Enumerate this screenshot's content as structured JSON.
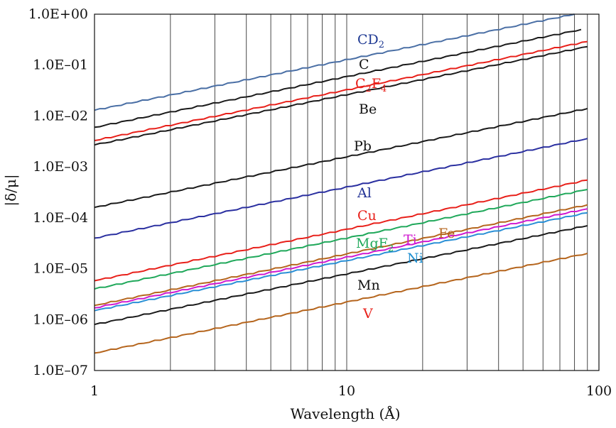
{
  "chart_data": {
    "type": "line",
    "xlabel": "Wavelength (Å)",
    "ylabel": "|δ/μ|",
    "xscale": "log",
    "yscale": "log",
    "xlim": [
      1,
      100
    ],
    "ylim": [
      1e-07,
      1
    ],
    "x_ticks": [
      1,
      10,
      100
    ],
    "x_tick_labels": [
      "1",
      "10",
      "100"
    ],
    "y_ticks": [
      1,
      0.1,
      0.01,
      0.001,
      0.0001,
      1e-05,
      1e-06,
      1e-07
    ],
    "y_tick_labels": [
      "1.0E+00",
      "1.0E–01",
      "1.0E–02",
      "1.0E–03",
      "1.0E–04",
      "1.0E–05",
      "1.0E–06",
      "1.0E–07"
    ],
    "grid": "vertical",
    "legend": "inline labels",
    "series": [
      {
        "label": "CD",
        "label_sub": "2",
        "label_sub2": "",
        "color": "#1f3a93",
        "line_color": "#4a6fa5",
        "x": [
          1,
          80
        ],
        "y": [
          0.013,
          1.0
        ]
      },
      {
        "label": "C",
        "label_sub": "",
        "label_sub2": "",
        "color": "#111111",
        "line_color": "#1a1a1a",
        "x": [
          1,
          85
        ],
        "y": [
          0.006,
          0.5
        ]
      },
      {
        "label": "C",
        "label_sub": "2",
        "label_mid": "F",
        "label_sub2": "4",
        "color": "#e8201a",
        "line_color": "#e8201a",
        "x": [
          1,
          90
        ],
        "y": [
          0.0033,
          0.29
        ]
      },
      {
        "label": "Be",
        "label_sub": "",
        "label_sub2": "",
        "color": "#111111",
        "line_color": "#1a1a1a",
        "x": [
          1,
          90
        ],
        "y": [
          0.0027,
          0.23
        ]
      },
      {
        "label": "Pb",
        "label_sub": "",
        "label_sub2": "",
        "color": "#111111",
        "line_color": "#1a1a1a",
        "x": [
          1,
          90
        ],
        "y": [
          0.00016,
          0.014
        ]
      },
      {
        "label": "Al",
        "label_sub": "",
        "label_sub2": "",
        "color": "#1f2f93",
        "line_color": "#2a2fa0",
        "x": [
          1,
          90
        ],
        "y": [
          4e-05,
          0.0036
        ]
      },
      {
        "label": "Cu",
        "label_sub": "",
        "label_sub2": "",
        "color": "#e8201a",
        "line_color": "#e8201a",
        "x": [
          1,
          90
        ],
        "y": [
          5.8e-06,
          0.00055
        ]
      },
      {
        "label": "MgF",
        "label_sub": "2",
        "label_sub2": "",
        "color": "#1fa85a",
        "line_color": "#1fa85a",
        "x": [
          1,
          90
        ],
        "y": [
          4e-06,
          0.00036
        ]
      },
      {
        "label": "Fe",
        "label_sub": "",
        "label_sub2": "",
        "color": "#b5651d",
        "line_color": "#b5651d",
        "x": [
          1,
          90
        ],
        "y": [
          1.9e-06,
          0.00018
        ]
      },
      {
        "label": "Ti",
        "label_sub": "",
        "label_sub2": "",
        "color": "#d019d0",
        "line_color": "#d019d0",
        "x": [
          1,
          90
        ],
        "y": [
          1.7e-06,
          0.00015
        ]
      },
      {
        "label": "Ni",
        "label_sub": "",
        "label_sub2": "",
        "color": "#1f8fd0",
        "line_color": "#2a8fd6",
        "x": [
          1,
          90
        ],
        "y": [
          1.5e-06,
          0.000125
        ]
      },
      {
        "label": "Mn",
        "label_sub": "",
        "label_sub2": "",
        "color": "#111111",
        "line_color": "#1a1a1a",
        "x": [
          1,
          90
        ],
        "y": [
          8e-07,
          7e-05
        ]
      },
      {
        "label": "V",
        "label_sub": "",
        "label_sub2": "",
        "color": "#e8201a",
        "line_color": "#b5651d",
        "x": [
          1,
          90
        ],
        "y": [
          2.2e-07,
          2e-05
        ]
      }
    ]
  }
}
